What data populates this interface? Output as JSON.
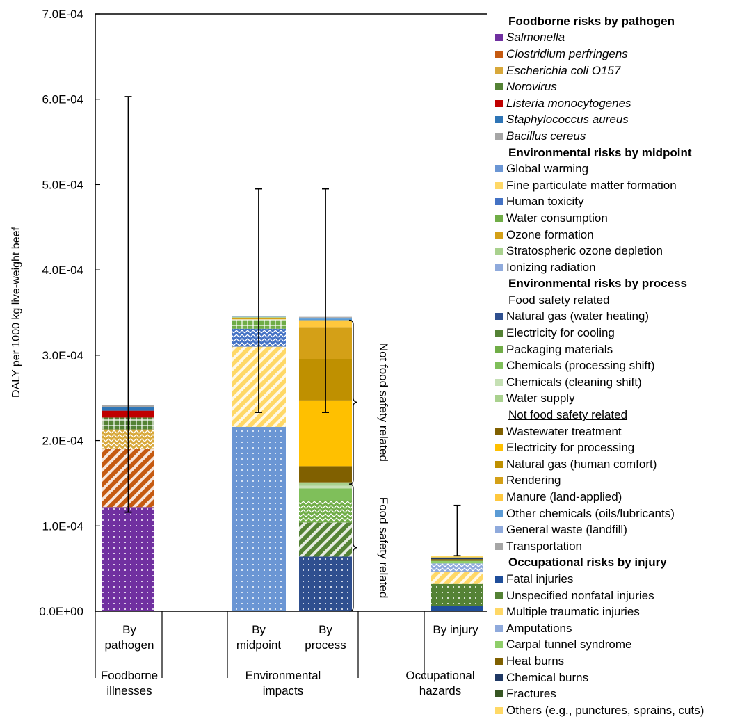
{
  "chart_data": {
    "type": "bar",
    "stacked": true,
    "ylabel": "DALY per 1000 kg live-weight beef",
    "ylim": [
      0,
      0.0007
    ],
    "yticks": [
      "0.0E+00",
      "1.0E-04",
      "2.0E-04",
      "3.0E-04",
      "4.0E-04",
      "5.0E-04",
      "6.0E-04",
      "7.0E-04"
    ],
    "categories": [
      "By pathogen",
      "By midpoint",
      "By process",
      "By injury"
    ],
    "category_labels": [
      [
        "By",
        "pathogen"
      ],
      [
        "By",
        "midpoint"
      ],
      [
        "By",
        "process"
      ],
      [
        "By injury"
      ]
    ],
    "groups": [
      {
        "label": [
          "Foodborne",
          "illnesses"
        ]
      },
      {
        "label": [
          "Environmental",
          "impacts"
        ]
      },
      {
        "label": [
          "Occupational",
          "hazards"
        ]
      }
    ],
    "bars": [
      {
        "category": "By pathogen",
        "segments": [
          {
            "name": "Salmonella",
            "value": 0.000122
          },
          {
            "name": "Clostridium perfringens",
            "value": 6.8e-05
          },
          {
            "name": "Escherichia coli O157",
            "value": 2.3e-05
          },
          {
            "name": "Norovirus",
            "value": 1.4e-05
          },
          {
            "name": "Listeria monocytogenes",
            "value": 8e-06
          },
          {
            "name": "Staphylococcus aureus",
            "value": 4e-06
          },
          {
            "name": "Bacillus cereus",
            "value": 3e-06
          }
        ],
        "error_bar": {
          "low": 0.000116,
          "high": 0.000603
        }
      },
      {
        "category": "By midpoint",
        "segments": [
          {
            "name": "Global warming",
            "value": 0.000216
          },
          {
            "name": "Fine particulate matter formation",
            "value": 9.4e-05
          },
          {
            "name": "Human toxicity",
            "value": 2.1e-05
          },
          {
            "name": "Water consumption",
            "value": 1.1e-05
          },
          {
            "name": "Ozone formation",
            "value": 2e-06
          },
          {
            "name": "Stratospheric ozone depletion",
            "value": 1e-06
          },
          {
            "name": "Ionizing radiation",
            "value": 1e-06
          }
        ],
        "error_bar": {
          "low": 0.000233,
          "high": 0.000495
        }
      },
      {
        "category": "By process",
        "segments": [
          {
            "name": "Natural gas (water heating)",
            "value": 6.4e-05
          },
          {
            "name": "Electricity for cooling",
            "value": 4e-05
          },
          {
            "name": "Packaging materials",
            "value": 2.6e-05
          },
          {
            "name": "Chemicals (processing shift)",
            "value": 1.4e-05
          },
          {
            "name": "Chemicals (cleaning shift)",
            "value": 3e-06
          },
          {
            "name": "Water supply",
            "value": 4e-06
          },
          {
            "name": "Wastewater treatment",
            "value": 1.9e-05
          },
          {
            "name": "Electricity for processing",
            "value": 7.7e-05
          },
          {
            "name": "Natural gas (human comfort)",
            "value": 4.8e-05
          },
          {
            "name": "Rendering",
            "value": 3.8e-05
          },
          {
            "name": "Manure (land-applied)",
            "value": 8e-06
          },
          {
            "name": "Other chemicals (oils/lubricants)",
            "value": 2e-06
          },
          {
            "name": "General waste (landfill)",
            "value": 1e-06
          },
          {
            "name": "Transportation",
            "value": 1e-06
          }
        ],
        "error_bar": {
          "low": 0.000233,
          "high": 0.000495
        }
      },
      {
        "category": "By injury",
        "segments": [
          {
            "name": "Fatal injuries",
            "value": 6e-06
          },
          {
            "name": "Unspecified nonfatal injuries",
            "value": 2.6e-05
          },
          {
            "name": "Multiple traumatic injuries",
            "value": 1.4e-05
          },
          {
            "name": "Amputations",
            "value": 1e-05
          },
          {
            "name": "Carpal tunnel syndrome",
            "value": 3e-06
          },
          {
            "name": "Heat burns",
            "value": 2e-06
          },
          {
            "name": "Chemical burns",
            "value": 1e-06
          },
          {
            "name": "Fractures",
            "value": 1e-06
          },
          {
            "name": "Others (e.g., punctures, sprains, cuts)",
            "value": 2e-06
          }
        ],
        "error_bar": {
          "low": 6.5e-05,
          "high": 0.000124
        }
      }
    ],
    "brackets": [
      {
        "label": "Not food safety related",
        "from": 0.000149,
        "to": 0.000341
      },
      {
        "label": "Food safety related",
        "from": 0.0,
        "to": 0.000149
      }
    ]
  },
  "legend": [
    {
      "kind": "head",
      "text": "Foodborne risks by pathogen"
    },
    {
      "kind": "item",
      "text": "Salmonella",
      "italic": true,
      "color": "#7030a0"
    },
    {
      "kind": "item",
      "text": "Clostridium perfringens",
      "italic": true,
      "color": "#c55a11"
    },
    {
      "kind": "item",
      "text": "Escherichia coli O157",
      "italic": true,
      "color": "#d8a83a"
    },
    {
      "kind": "item",
      "text": "Norovirus",
      "italic": true,
      "color": "#548235"
    },
    {
      "kind": "item",
      "text": "Listeria monocytogenes",
      "italic": true,
      "color": "#c00000"
    },
    {
      "kind": "item",
      "text": "Staphylococcus aureus",
      "italic": true,
      "color": "#2e75b6"
    },
    {
      "kind": "item",
      "text": "Bacillus cereus",
      "italic": true,
      "color": "#a6a6a6"
    },
    {
      "kind": "head",
      "text": "Environmental risks by midpoint"
    },
    {
      "kind": "item",
      "text": "Global warming",
      "color": "#6b96d4"
    },
    {
      "kind": "item",
      "text": "Fine particulate matter formation",
      "color": "#ffd866"
    },
    {
      "kind": "item",
      "text": "Human toxicity",
      "color": "#4472c4"
    },
    {
      "kind": "item",
      "text": "Water consumption",
      "color": "#70ad47"
    },
    {
      "kind": "item",
      "text": "Ozone formation",
      "color": "#d4a017"
    },
    {
      "kind": "item",
      "text": "Stratospheric ozone depletion",
      "color": "#a9d18e"
    },
    {
      "kind": "item",
      "text": "Ionizing radiation",
      "color": "#8faadc"
    },
    {
      "kind": "head",
      "text": "Environmental risks by process"
    },
    {
      "kind": "sub",
      "text": "Food safety related"
    },
    {
      "kind": "item",
      "text": "Natural gas (water heating)",
      "color": "#2f4f8f"
    },
    {
      "kind": "item",
      "text": "Electricity for cooling",
      "color": "#548235"
    },
    {
      "kind": "item",
      "text": "Packaging materials",
      "color": "#70ad47"
    },
    {
      "kind": "item",
      "text": "Chemicals (processing shift)",
      "color": "#7fbf5a"
    },
    {
      "kind": "item",
      "text": "Chemicals (cleaning shift)",
      "color": "#c5e0b4"
    },
    {
      "kind": "item",
      "text": "Water supply",
      "color": "#a9d18e"
    },
    {
      "kind": "sub",
      "text": "Not food safety related"
    },
    {
      "kind": "item",
      "text": "Wastewater treatment",
      "color": "#806000"
    },
    {
      "kind": "item",
      "text": "Electricity for processing",
      "color": "#ffc000"
    },
    {
      "kind": "item",
      "text": "Natural gas (human comfort)",
      "color": "#bf9000"
    },
    {
      "kind": "item",
      "text": "Rendering",
      "color": "#d4a017"
    },
    {
      "kind": "item",
      "text": "Manure (land-applied)",
      "color": "#ffc83d"
    },
    {
      "kind": "item",
      "text": "Other chemicals (oils/lubricants)",
      "color": "#5b9bd5"
    },
    {
      "kind": "item",
      "text": "General waste (landfill)",
      "color": "#8faadc"
    },
    {
      "kind": "item",
      "text": "Transportation",
      "color": "#a6a6a6"
    },
    {
      "kind": "head",
      "text": "Occupational risks by injury"
    },
    {
      "kind": "item",
      "text": "Fatal injuries",
      "color": "#1f4e9a"
    },
    {
      "kind": "item",
      "text": "Unspecified nonfatal injuries",
      "color": "#548235"
    },
    {
      "kind": "item",
      "text": "Multiple traumatic injuries",
      "color": "#ffd866"
    },
    {
      "kind": "item",
      "text": "Amputations",
      "color": "#8faadc"
    },
    {
      "kind": "item",
      "text": "Carpal tunnel syndrome",
      "color": "#8fce6a"
    },
    {
      "kind": "item",
      "text": "Heat burns",
      "color": "#7f6000"
    },
    {
      "kind": "item",
      "text": "Chemical burns",
      "color": "#1f3864"
    },
    {
      "kind": "item",
      "text": "Fractures",
      "color": "#375623"
    },
    {
      "kind": "item",
      "text": "Others (e.g., punctures, sprains, cuts)",
      "color": "#ffd966"
    }
  ]
}
